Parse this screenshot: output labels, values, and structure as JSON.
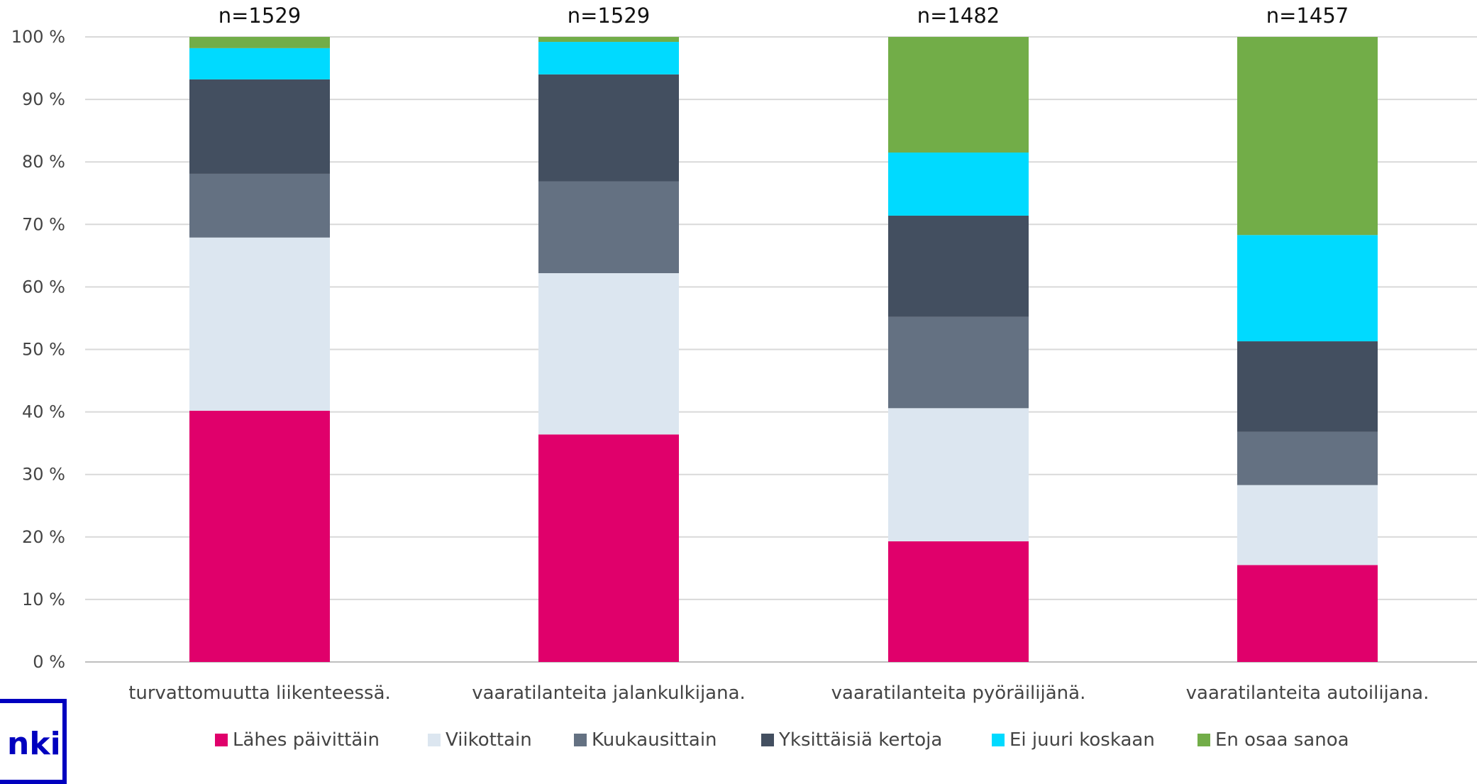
{
  "chart_data": {
    "type": "bar",
    "stacked": true,
    "title": "",
    "xlabel": "",
    "ylabel": "",
    "ylim": [
      0,
      100
    ],
    "yticks": [
      "0 %",
      "10 %",
      "20 %",
      "30 %",
      "40 %",
      "50 %",
      "60 %",
      "70 %",
      "80 %",
      "90 %",
      "100 %"
    ],
    "grid": true,
    "legend_position": "bottom",
    "categories": [
      "turvattomuutta liikenteessä.",
      "vaaratilanteita jalankulkijana.",
      "vaaratilanteita pyöräilijänä.",
      "vaaratilanteita autoilijana."
    ],
    "sample_sizes": [
      "n=1529",
      "n=1529",
      "n=1482",
      "n=1457"
    ],
    "series": [
      {
        "name": "Lähes päivittäin",
        "color": "#e0006b",
        "values": [
          40.2,
          36.4,
          19.3,
          15.5
        ]
      },
      {
        "name": "Viikottain",
        "color": "#dce6f0",
        "values": [
          27.7,
          25.8,
          21.3,
          12.8
        ]
      },
      {
        "name": "Kuukausittain",
        "color": "#647182",
        "values": [
          10.2,
          14.7,
          14.6,
          8.5
        ]
      },
      {
        "name": "Yksittäisiä kertoja",
        "color": "#434f60",
        "values": [
          15.1,
          17.1,
          16.2,
          14.5
        ]
      },
      {
        "name": "Ei juuri koskaan",
        "color": "#00daff",
        "values": [
          5.0,
          5.2,
          10.1,
          17.0
        ]
      },
      {
        "name": "En osaa sanoa",
        "color": "#72ad48",
        "values": [
          1.8,
          0.8,
          18.5,
          31.7
        ]
      }
    ]
  },
  "logo": {
    "text": "nki"
  }
}
